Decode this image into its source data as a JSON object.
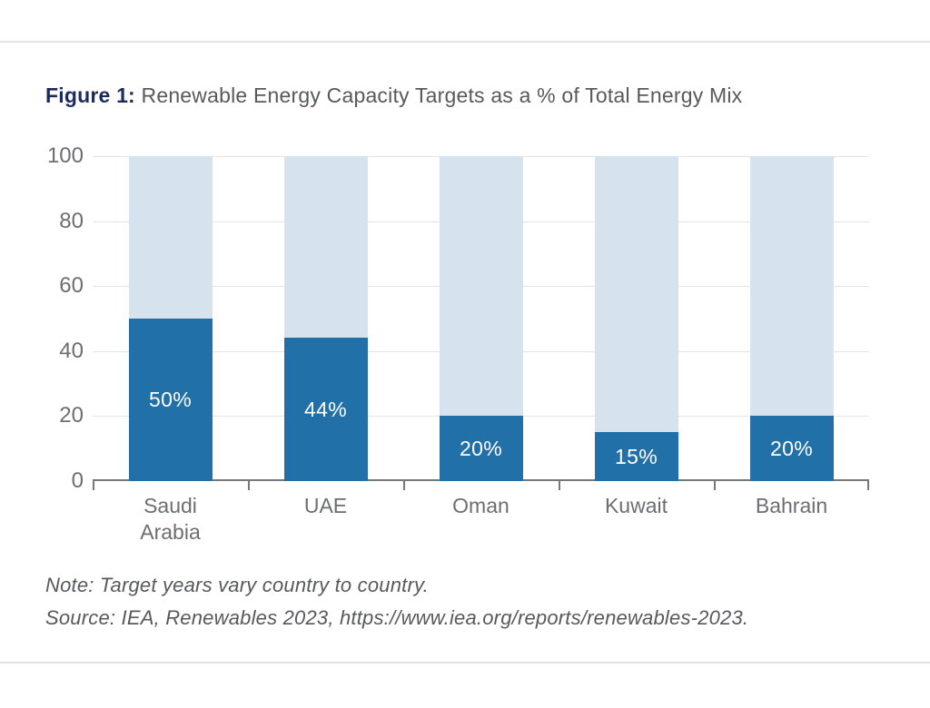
{
  "figure": {
    "label": "Figure 1:",
    "title": " Renewable Energy Capacity Targets as a % of Total Energy Mix"
  },
  "chart_data": {
    "type": "bar",
    "subtype": "stacked-percentage",
    "title": "Renewable Energy Capacity Targets as a % of Total Energy Mix",
    "categories": [
      "Saudi Arabia",
      "UAE",
      "Oman",
      "Kuwait",
      "Bahrain"
    ],
    "values": [
      50,
      44,
      20,
      15,
      20
    ],
    "value_labels": [
      "50%",
      "44%",
      "20%",
      "15%",
      "20%"
    ],
    "remainder_to": 100,
    "xlabel": "",
    "ylabel": "",
    "ylim": [
      0,
      100
    ],
    "yticks": [
      0,
      20,
      40,
      60,
      80,
      100
    ],
    "grid": true,
    "legend": "none",
    "colors": {
      "target_bar": "#2270a8",
      "remainder_bar": "#d6e3ee",
      "gridline": "#e4e4e4",
      "axis": "#77787a",
      "bar_label": "#ffffff",
      "title_label": "#1f2a5c",
      "text_gray": "#58595b"
    }
  },
  "notes": {
    "note": "Note: Target years vary country to country.",
    "source": "Source: IEA, Renewables 2023, https://www.iea.org/reports/renewables-2023."
  }
}
